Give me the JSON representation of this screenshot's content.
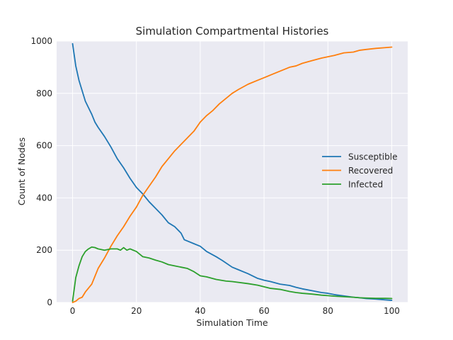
{
  "chart_data": {
    "type": "line",
    "title": "Simulation Compartmental Histories",
    "xlabel": "Simulation Time",
    "ylabel": "Count of Nodes",
    "xlim": [
      -5,
      105
    ],
    "ylim": [
      0,
      1000
    ],
    "xticks": [
      0,
      20,
      40,
      60,
      80,
      100
    ],
    "yticks": [
      0,
      200,
      400,
      600,
      800,
      1000
    ],
    "grid": true,
    "legend_position": "center-right",
    "series": [
      {
        "name": "Susceptible",
        "color": "#1f77b4",
        "x": [
          0,
          1,
          2,
          3,
          4,
          5,
          6,
          7,
          8,
          10,
          12,
          14,
          16,
          18,
          20,
          22,
          24,
          26,
          28,
          30,
          32,
          34,
          35,
          38,
          40,
          42,
          45,
          47,
          50,
          52,
          55,
          58,
          60,
          62,
          65,
          68,
          70,
          72,
          75,
          78,
          80,
          82,
          85,
          88,
          90,
          92,
          95,
          98,
          100
        ],
        "y": [
          990,
          905,
          850,
          810,
          770,
          745,
          720,
          690,
          670,
          635,
          595,
          550,
          515,
          475,
          440,
          415,
          385,
          360,
          335,
          305,
          290,
          265,
          240,
          225,
          215,
          195,
          175,
          160,
          135,
          125,
          110,
          92,
          85,
          80,
          70,
          65,
          58,
          52,
          45,
          38,
          35,
          30,
          25,
          20,
          18,
          15,
          13,
          10,
          8
        ]
      },
      {
        "name": "Recovered",
        "color": "#ff7f0e",
        "x": [
          0,
          1,
          2,
          3,
          4,
          5,
          6,
          7,
          8,
          10,
          12,
          14,
          16,
          18,
          20,
          22,
          24,
          26,
          28,
          30,
          32,
          34,
          36,
          38,
          40,
          42,
          44,
          46,
          48,
          50,
          52,
          55,
          58,
          60,
          62,
          65,
          68,
          70,
          72,
          75,
          78,
          80,
          82,
          85,
          88,
          90,
          92,
          95,
          98,
          100
        ],
        "y": [
          0,
          5,
          15,
          20,
          40,
          55,
          70,
          100,
          130,
          170,
          215,
          255,
          290,
          330,
          365,
          410,
          445,
          480,
          520,
          550,
          580,
          605,
          630,
          655,
          690,
          715,
          735,
          760,
          780,
          800,
          815,
          835,
          850,
          860,
          870,
          885,
          900,
          905,
          915,
          925,
          935,
          940,
          945,
          955,
          958,
          965,
          968,
          972,
          975,
          977
        ]
      },
      {
        "name": "Infected",
        "color": "#2ca02c",
        "x": [
          0,
          1,
          2,
          3,
          4,
          5,
          6,
          7,
          8,
          10,
          12,
          14,
          15,
          16,
          17,
          18,
          20,
          22,
          24,
          26,
          28,
          30,
          32,
          34,
          36,
          38,
          40,
          42,
          45,
          48,
          50,
          55,
          58,
          60,
          62,
          65,
          68,
          70,
          72,
          75,
          78,
          80,
          82,
          85,
          88,
          90,
          92,
          95,
          98,
          100
        ],
        "y": [
          5,
          95,
          140,
          175,
          195,
          205,
          212,
          210,
          205,
          200,
          205,
          205,
          200,
          210,
          200,
          205,
          195,
          175,
          170,
          162,
          155,
          145,
          140,
          135,
          130,
          118,
          102,
          98,
          88,
          82,
          80,
          72,
          66,
          60,
          54,
          50,
          42,
          38,
          35,
          32,
          28,
          26,
          24,
          22,
          20,
          18,
          17,
          16,
          16,
          15
        ]
      }
    ]
  }
}
